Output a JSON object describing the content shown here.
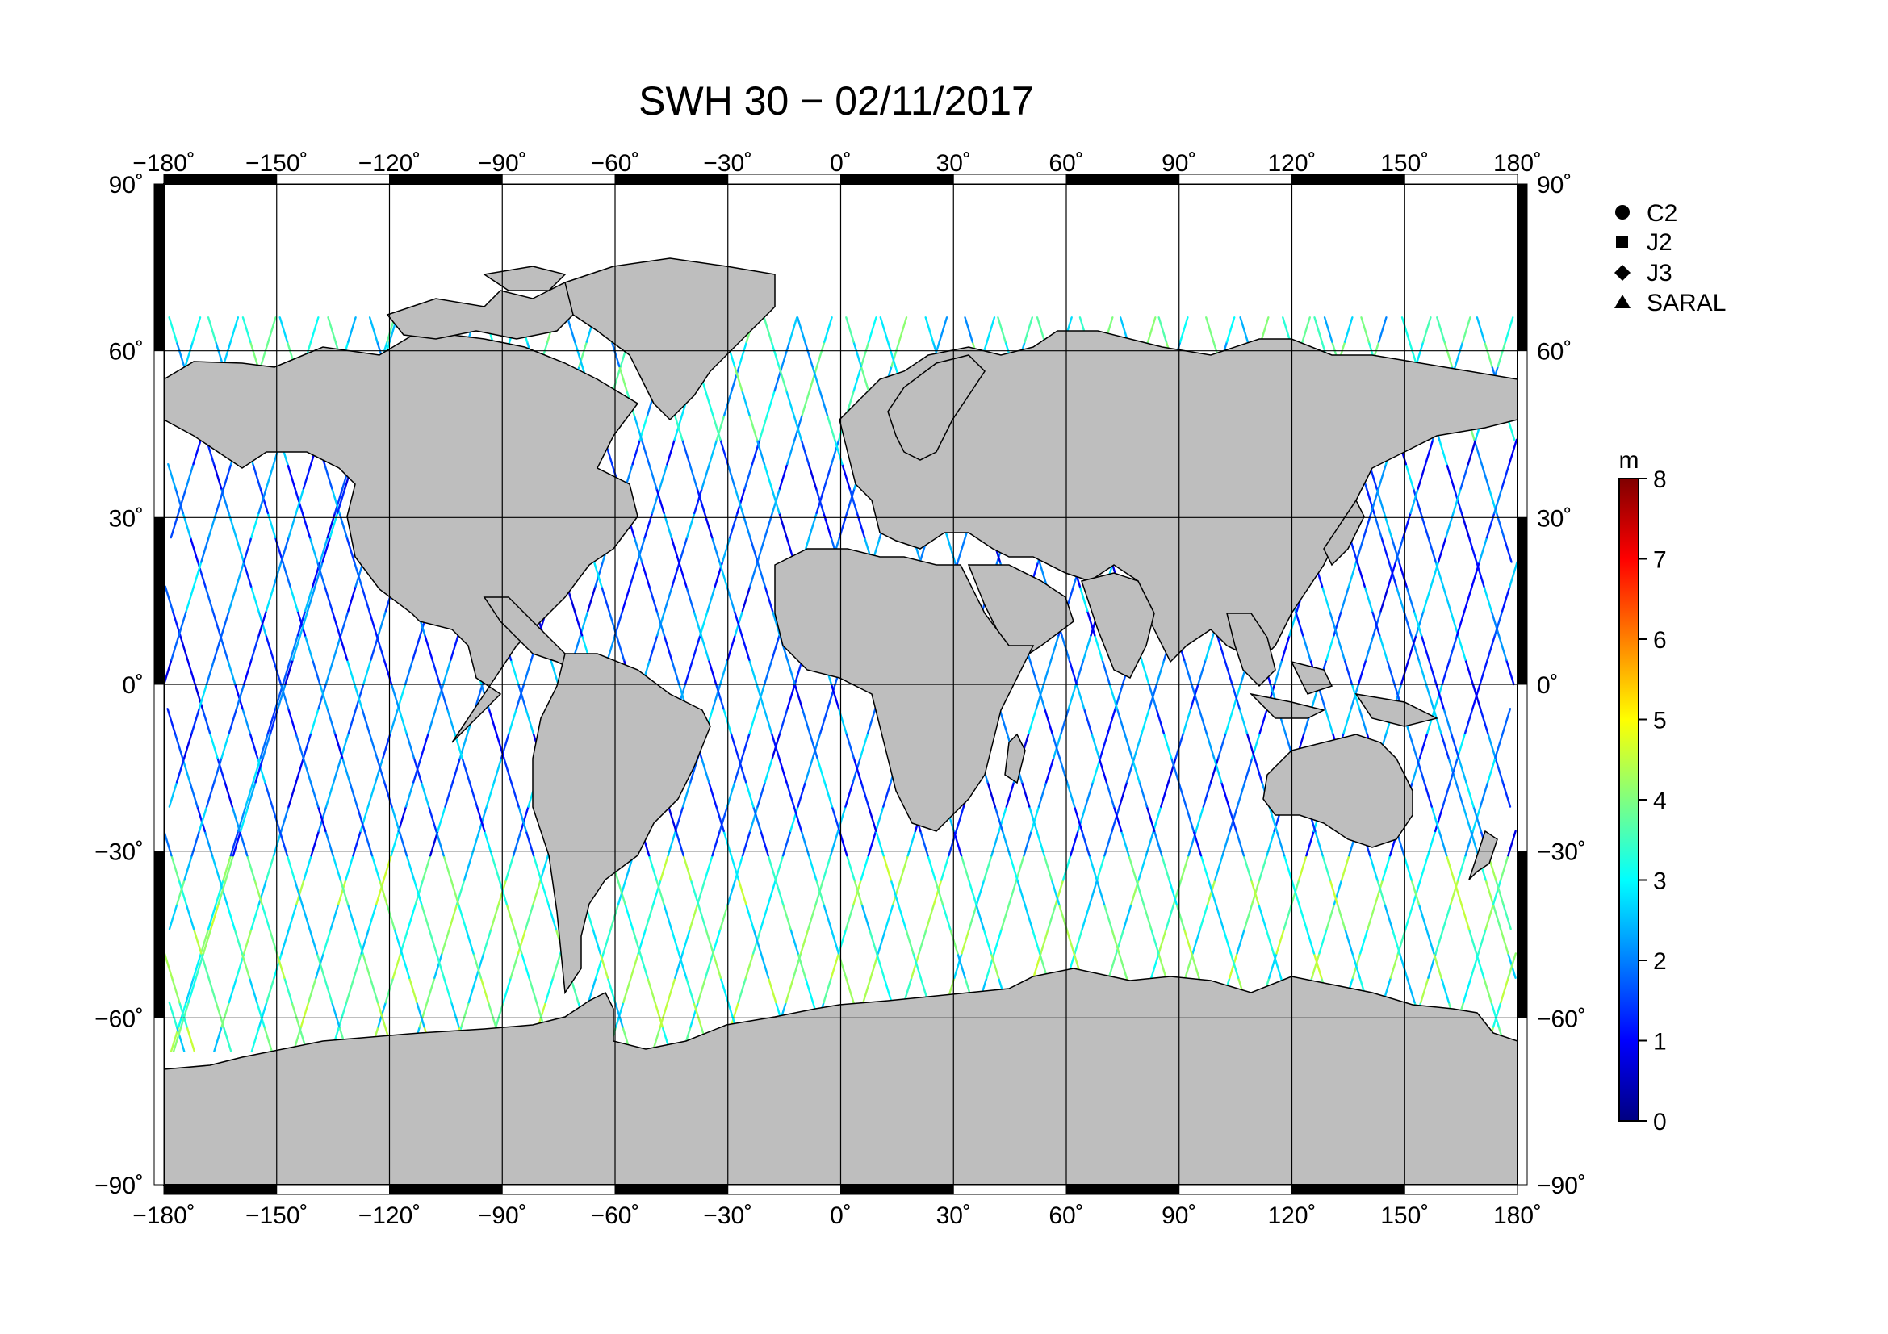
{
  "map": {
    "title": "SWH 30 − 02/11/2017",
    "projection": "equirectangular",
    "x_ticks": [
      "−180˚",
      "−150˚",
      "−120˚",
      "−90˚",
      "−60˚",
      "−30˚",
      "0˚",
      "30˚",
      "60˚",
      "90˚",
      "120˚",
      "150˚",
      "180˚"
    ],
    "y_ticks": [
      "90˚",
      "60˚",
      "30˚",
      "0˚",
      "−30˚",
      "−60˚",
      "−90˚"
    ],
    "land_color": "#bebebe",
    "ocean_color": "#ffffff"
  },
  "legend": {
    "items": [
      {
        "label": "C2",
        "marker": "circle"
      },
      {
        "label": "J2",
        "marker": "square"
      },
      {
        "label": "J3",
        "marker": "diamond"
      },
      {
        "label": "SARAL",
        "marker": "triangle"
      }
    ]
  },
  "colorbar": {
    "unit": "m",
    "ticks": [
      "0",
      "1",
      "2",
      "3",
      "4",
      "5",
      "6",
      "7",
      "8"
    ],
    "colormap": "jet",
    "colors": [
      "#000080",
      "#0000ff",
      "#0080ff",
      "#00ffff",
      "#80ff80",
      "#ffff00",
      "#ff8000",
      "#ff0000",
      "#800000"
    ]
  },
  "chart_data": {
    "type": "scatter",
    "title": "SWH 30 − 02/11/2017",
    "xlabel": "",
    "ylabel": "",
    "xlim": [
      -180,
      180
    ],
    "ylim": [
      -90,
      90
    ],
    "color_scale": {
      "unit": "m",
      "range": [
        0,
        8
      ]
    },
    "series": [
      {
        "name": "C2"
      },
      {
        "name": "J2"
      },
      {
        "name": "J3"
      },
      {
        "name": "SARAL"
      }
    ],
    "grid": true,
    "legend_placement": "right"
  }
}
